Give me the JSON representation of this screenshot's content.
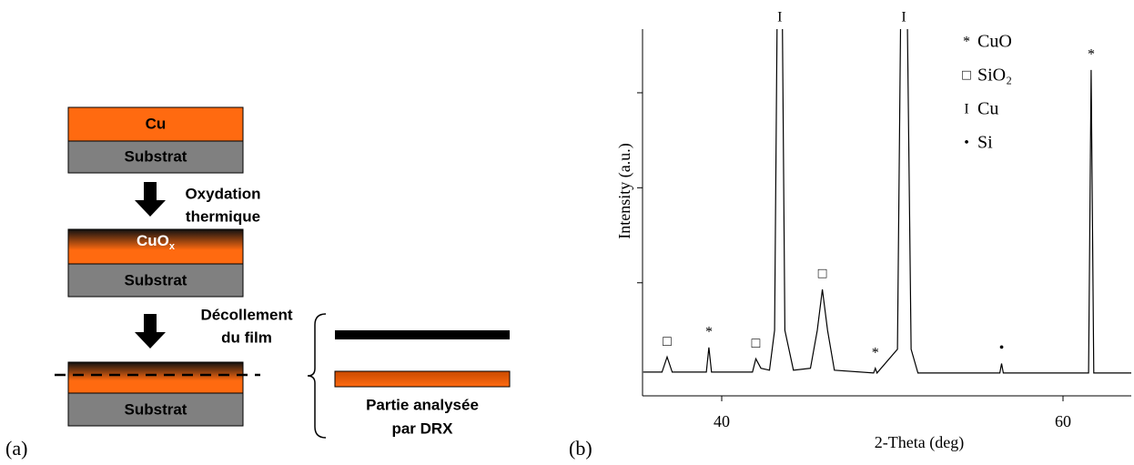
{
  "diagram": {
    "panel_label": "(a)",
    "layer_cu": "Cu",
    "substrate_1": "Substrat",
    "step_1": [
      "Oxydation",
      "thermique"
    ],
    "layer_cuox": {
      "text": "CuO",
      "sub": "x"
    },
    "substrate_2": "Substrat",
    "step_2": [
      "Décollement",
      "du film"
    ],
    "substrate_3": "Substrat",
    "analysed_part": [
      "Partie analysée",
      "par DRX"
    ]
  },
  "chart_data": {
    "type": "line",
    "panel_label": "(b)",
    "x_label": "2-Theta (deg)",
    "y_label": "Intensity (a.u.)",
    "color": "#000000",
    "x": [
      35.4,
      36.5,
      36.8,
      37.1,
      39.1,
      39.25,
      39.4,
      41.8,
      42.0,
      42.3,
      42.8,
      43.1,
      43.3,
      43.5,
      43.7,
      44.2,
      45.2,
      45.6,
      45.9,
      46.2,
      46.6,
      48.9,
      49.0,
      49.1,
      50.3,
      50.55,
      50.8,
      51.1,
      51.5,
      56.3,
      56.4,
      56.5,
      61.5,
      61.65,
      61.8,
      64
    ],
    "values": [
      0.06,
      0.06,
      0.22,
      0.06,
      0.06,
      0.32,
      0.06,
      0.06,
      0.2,
      0.1,
      0.08,
      0.5,
      5.0,
      5.0,
      0.5,
      0.08,
      0.1,
      0.5,
      0.93,
      0.5,
      0.08,
      0.05,
      0.1,
      0.05,
      0.3,
      5.0,
      5.0,
      0.3,
      0.05,
      0.05,
      0.15,
      0.05,
      0.05,
      3.24,
      0.05,
      0.05
    ],
    "xlim": [
      35.36,
      64
    ],
    "ylim": [
      -0.19,
      3.67
    ],
    "xticks": [
      40,
      60
    ],
    "yticks": [
      1,
      2,
      3
    ],
    "annotations": [
      {
        "x": 36.8,
        "text": "□"
      },
      {
        "x": 39.25,
        "text": "*"
      },
      {
        "x": 42.0,
        "text": "□"
      },
      {
        "x": 43.4,
        "text": "I"
      },
      {
        "x": 45.9,
        "text": "□"
      },
      {
        "x": 49.0,
        "text": "*"
      },
      {
        "x": 50.67,
        "text": "I"
      },
      {
        "x": 56.4,
        "text": "•"
      },
      {
        "x": 61.65,
        "text": "*"
      }
    ],
    "legend": [
      {
        "symbol": "*",
        "name": "CuO"
      },
      {
        "symbol": "□",
        "name": "SiO₂"
      },
      {
        "symbol": "I",
        "name": "Cu"
      },
      {
        "symbol": "•",
        "name": "Si"
      }
    ]
  }
}
